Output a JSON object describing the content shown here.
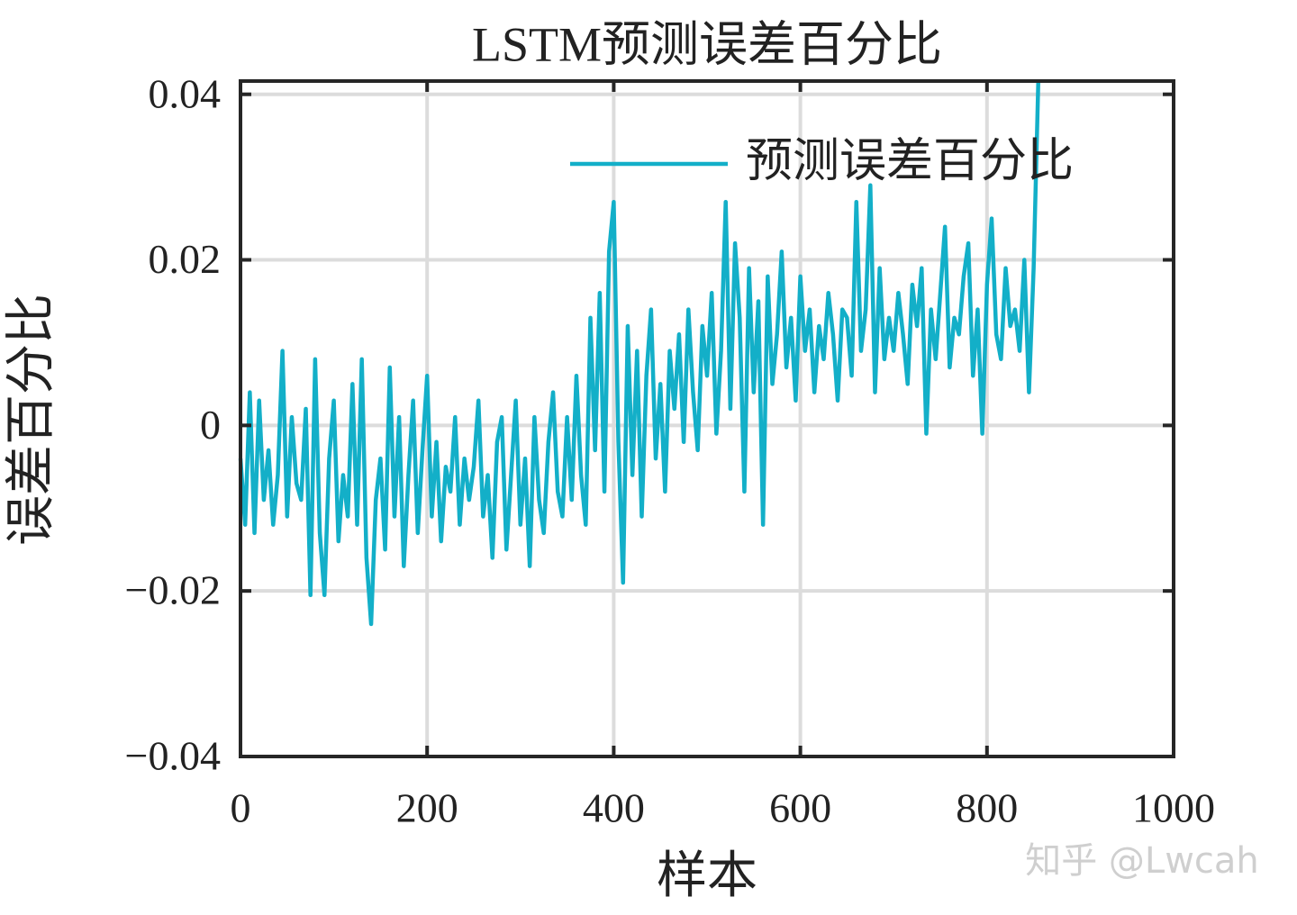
{
  "chart_data": {
    "type": "line",
    "title": "LSTM预测误差百分比",
    "xlabel": "样本",
    "ylabel": "误差百分比",
    "watermark": "知乎 @Lwcah",
    "x": [
      0,
      5,
      10,
      15,
      20,
      25,
      30,
      35,
      40,
      45,
      50,
      55,
      60,
      65,
      70,
      75,
      80,
      85,
      90,
      95,
      100,
      105,
      110,
      115,
      120,
      125,
      130,
      135,
      140,
      145,
      150,
      155,
      160,
      165,
      170,
      175,
      180,
      185,
      190,
      195,
      200,
      205,
      210,
      215,
      220,
      225,
      230,
      235,
      240,
      245,
      250,
      255,
      260,
      265,
      270,
      275,
      280,
      285,
      290,
      295,
      300,
      305,
      310,
      315,
      320,
      325,
      330,
      335,
      340,
      345,
      350,
      355,
      360,
      365,
      370,
      375,
      380,
      385,
      390,
      395,
      400,
      405,
      410,
      415,
      420,
      425,
      430,
      435,
      440,
      445,
      450,
      455,
      460,
      465,
      470,
      475,
      480,
      485,
      490,
      495,
      500,
      505,
      510,
      515,
      520,
      525,
      530,
      535,
      540,
      545,
      550,
      555,
      560,
      565,
      570,
      575,
      580,
      585,
      590,
      595,
      600,
      605,
      610,
      615,
      620,
      625,
      630,
      635,
      640,
      645,
      650,
      655,
      660,
      665,
      670,
      675,
      680,
      685,
      690,
      695,
      700,
      705,
      710,
      715,
      720,
      725,
      730,
      735,
      740,
      745,
      750,
      755,
      760,
      765,
      770,
      775,
      780,
      785,
      790,
      795,
      800,
      805,
      810,
      815,
      820,
      825,
      830,
      835,
      840,
      845,
      850,
      855
    ],
    "series": [
      {
        "name": "预测误差百分比",
        "color": "#13afc8",
        "values": [
          -0.004,
          -0.012,
          0.004,
          -0.013,
          0.003,
          -0.009,
          -0.003,
          -0.012,
          -0.006,
          0.009,
          -0.011,
          0.001,
          -0.007,
          -0.009,
          0.002,
          -0.0205,
          0.008,
          -0.013,
          -0.0205,
          -0.004,
          0.003,
          -0.014,
          -0.006,
          -0.011,
          0.005,
          -0.012,
          0.008,
          -0.016,
          -0.024,
          -0.009,
          -0.004,
          -0.015,
          0.007,
          -0.011,
          0.001,
          -0.017,
          -0.006,
          0.003,
          -0.013,
          -0.003,
          0.006,
          -0.011,
          -0.002,
          -0.014,
          -0.005,
          -0.008,
          0.001,
          -0.012,
          -0.004,
          -0.009,
          -0.005,
          0.003,
          -0.011,
          -0.006,
          -0.016,
          -0.002,
          0.001,
          -0.015,
          -0.006,
          0.003,
          -0.012,
          -0.004,
          -0.017,
          0.001,
          -0.009,
          -0.013,
          -0.002,
          0.004,
          -0.008,
          -0.011,
          0.001,
          -0.009,
          0.006,
          -0.006,
          -0.012,
          0.013,
          -0.003,
          0.016,
          -0.008,
          0.021,
          0.027,
          -0.002,
          -0.019,
          0.012,
          -0.006,
          0.009,
          -0.011,
          0.006,
          0.014,
          -0.004,
          0.005,
          -0.008,
          0.009,
          0.002,
          0.011,
          -0.002,
          0.014,
          0.004,
          -0.003,
          0.012,
          0.006,
          0.016,
          -0.001,
          0.009,
          0.027,
          0.002,
          0.022,
          0.013,
          -0.008,
          0.019,
          0.004,
          0.015,
          -0.012,
          0.018,
          0.005,
          0.011,
          0.021,
          0.007,
          0.013,
          0.003,
          0.018,
          0.009,
          0.014,
          0.004,
          0.012,
          0.008,
          0.016,
          0.011,
          0.003,
          0.014,
          0.013,
          0.006,
          0.027,
          0.009,
          0.014,
          0.029,
          0.004,
          0.019,
          0.008,
          0.013,
          0.009,
          0.016,
          0.011,
          0.005,
          0.017,
          0.012,
          0.019,
          -0.001,
          0.014,
          0.008,
          0.016,
          0.024,
          0.007,
          0.013,
          0.011,
          0.018,
          0.022,
          0.006,
          0.014,
          -0.001,
          0.017,
          0.025,
          0.011,
          0.008,
          0.019,
          0.012,
          0.014,
          0.009,
          0.02,
          0.004,
          0.019,
          0.0416
        ]
      }
    ],
    "xlim": [
      0,
      1000
    ],
    "xticks": [
      0,
      200,
      400,
      600,
      800,
      1000
    ],
    "ylim": [
      -0.04,
      0.0416
    ],
    "yticks": [
      {
        "value": -0.04,
        "label": "−0.04"
      },
      {
        "value": -0.02,
        "label": "−0.02"
      },
      0,
      0.02,
      0.04
    ],
    "grid": true,
    "legend": "upper right"
  }
}
